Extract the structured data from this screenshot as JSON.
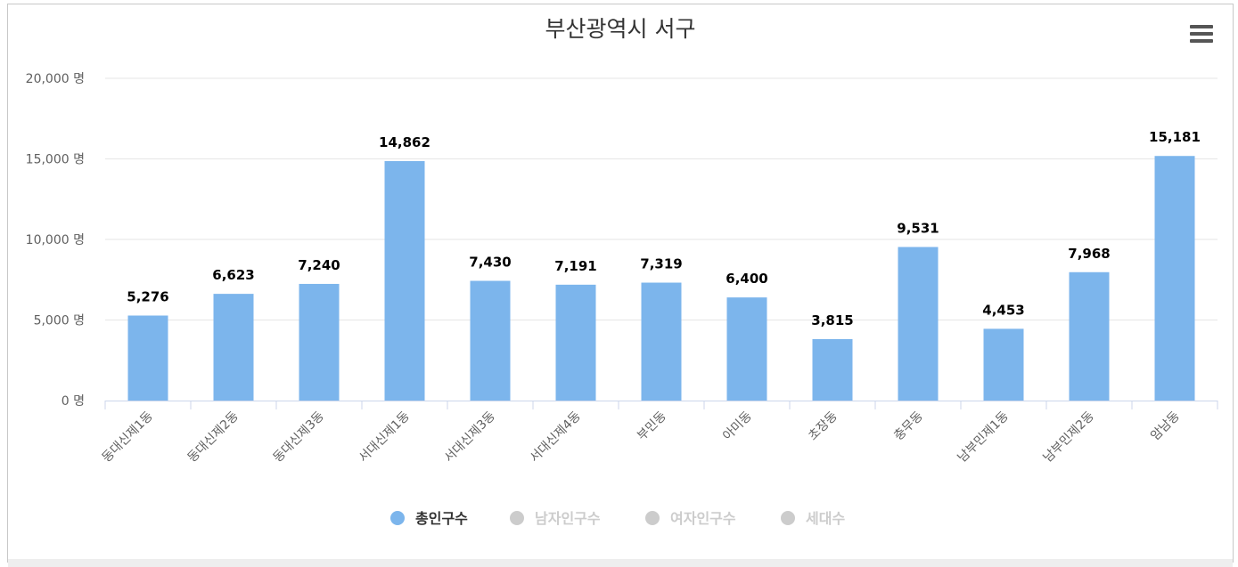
{
  "chart_data": {
    "type": "bar",
    "title": "부산광역시 서구",
    "categories": [
      "동대신제1동",
      "동대신제2동",
      "동대신제3동",
      "서대신제1동",
      "서대신제3동",
      "서대신제4동",
      "부민동",
      "아미동",
      "초장동",
      "충무동",
      "남부민제1동",
      "남부민제2동",
      "암남동"
    ],
    "series": [
      {
        "name": "총인구수",
        "values": [
          5276,
          6623,
          7240,
          14862,
          7430,
          7191,
          7319,
          6400,
          3815,
          9531,
          4453,
          7968,
          15181
        ],
        "color": "#7cb5ec",
        "visible": true
      }
    ],
    "value_labels": [
      "5,276",
      "6,623",
      "7,240",
      "14,862",
      "7,430",
      "7,191",
      "7,319",
      "6,400",
      "3,815",
      "9,531",
      "4,453",
      "7,968",
      "15,181"
    ],
    "ylim": [
      0,
      20000
    ],
    "yticks": [
      0,
      5000,
      10000,
      15000,
      20000
    ],
    "ytick_labels": [
      "0 명",
      "5,000 명",
      "10,000 명",
      "15,000 명",
      "20,000 명"
    ],
    "grid": true,
    "legend": {
      "placement": "bottom-center",
      "items": [
        {
          "label": "총인구수",
          "active": true,
          "color": "#7cb5ec"
        },
        {
          "label": "남자인구수",
          "active": false,
          "color": "#cccccc"
        },
        {
          "label": "여자인구수",
          "active": false,
          "color": "#cccccc"
        },
        {
          "label": "세대수",
          "active": false,
          "color": "#cccccc"
        }
      ]
    }
  },
  "ui": {
    "menu_icon": "hamburger-menu-icon"
  }
}
